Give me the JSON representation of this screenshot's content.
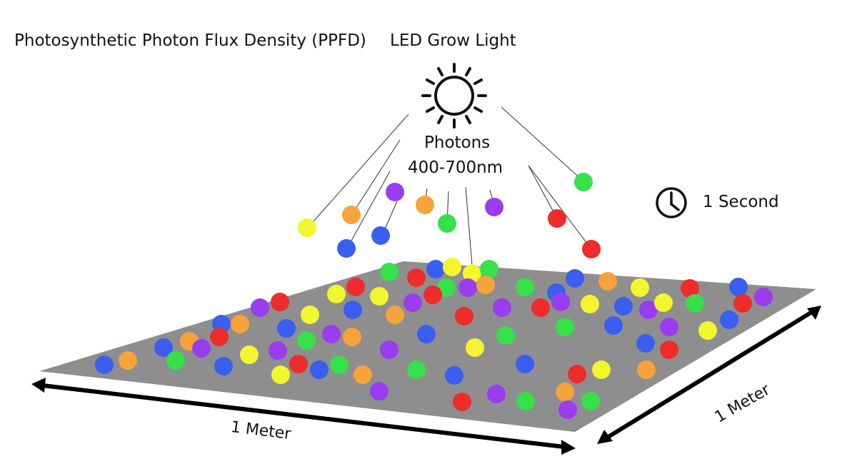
{
  "title": "Photosynthetic Photon Flux Density (PPFD)",
  "light_source": {
    "label": "LED Grow Light",
    "icon": "sun-icon"
  },
  "photons": {
    "label": "Photons",
    "range": "400-700nm"
  },
  "duration": {
    "label": "1 Second",
    "icon": "clock-icon"
  },
  "dimensions": {
    "width_label": "1 Meter",
    "depth_label": "1 Meter"
  },
  "colors": {
    "red": "#ee2c2c",
    "orange": "#f7a23a",
    "yellow": "#f3f52e",
    "green": "#35e04a",
    "blue": "#3a5ff0",
    "purple": "#9a3cf0",
    "surface": "#8e8e8e"
  }
}
